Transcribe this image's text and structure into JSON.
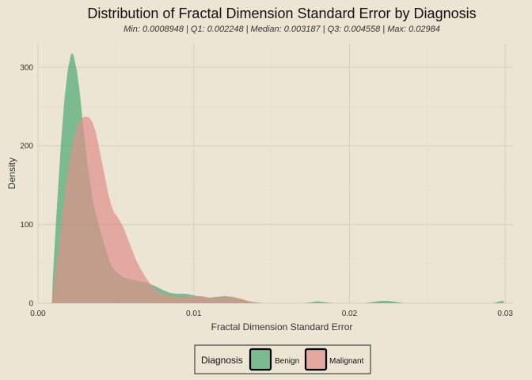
{
  "chart_data": {
    "type": "area",
    "title": "Distribution of Fractal Dimension Standard Error by Diagnosis",
    "subtitle": "Min: 0.0008948 | Q1: 0.002248 | Median: 0.003187 | Q3: 0.004558 | Max: 0.02984",
    "xlabel": "Fractal Dimension Standard Error",
    "ylabel": "Density",
    "xlim": [
      0,
      0.0305
    ],
    "ylim": [
      0,
      330
    ],
    "x_ticks": [
      0,
      0.01,
      0.02,
      0.03
    ],
    "x_tick_labels": [
      "0.00",
      "0.01",
      "0.02",
      "0.03"
    ],
    "y_ticks": [
      0,
      100,
      200,
      300
    ],
    "y_tick_labels": [
      "0",
      "100",
      "200",
      "300"
    ],
    "grid": true,
    "legend_position": "bottom",
    "legend_title": "Diagnosis",
    "series": [
      {
        "name": "Benign",
        "color": "#3fa56a",
        "opacity": 0.65,
        "points": [
          [
            0.00089,
            0
          ],
          [
            0.00095,
            30
          ],
          [
            0.0011,
            85
          ],
          [
            0.0013,
            150
          ],
          [
            0.0015,
            210
          ],
          [
            0.0017,
            260
          ],
          [
            0.0019,
            295
          ],
          [
            0.0021,
            315
          ],
          [
            0.0022,
            318
          ],
          [
            0.0023,
            314
          ],
          [
            0.0025,
            295
          ],
          [
            0.0027,
            265
          ],
          [
            0.0029,
            225
          ],
          [
            0.0031,
            190
          ],
          [
            0.0033,
            160
          ],
          [
            0.0035,
            132
          ],
          [
            0.0037,
            115
          ],
          [
            0.0039,
            100
          ],
          [
            0.0041,
            85
          ],
          [
            0.0043,
            72
          ],
          [
            0.0045,
            58
          ],
          [
            0.0047,
            48
          ],
          [
            0.005,
            40
          ],
          [
            0.0055,
            33
          ],
          [
            0.006,
            30
          ],
          [
            0.0065,
            28
          ],
          [
            0.007,
            26
          ],
          [
            0.0075,
            22
          ],
          [
            0.008,
            17
          ],
          [
            0.0085,
            13
          ],
          [
            0.009,
            12
          ],
          [
            0.0095,
            12
          ],
          [
            0.01,
            10
          ],
          [
            0.0105,
            8
          ],
          [
            0.011,
            7
          ],
          [
            0.0115,
            8
          ],
          [
            0.012,
            9
          ],
          [
            0.0125,
            8
          ],
          [
            0.013,
            5
          ],
          [
            0.0135,
            2
          ],
          [
            0.014,
            1
          ],
          [
            0.0145,
            0
          ],
          [
            0.017,
            0
          ],
          [
            0.0175,
            1
          ],
          [
            0.018,
            2.5
          ],
          [
            0.0185,
            1
          ],
          [
            0.019,
            0
          ],
          [
            0.021,
            0
          ],
          [
            0.0215,
            1.5
          ],
          [
            0.022,
            3
          ],
          [
            0.0225,
            3
          ],
          [
            0.023,
            1.5
          ],
          [
            0.0235,
            0
          ],
          [
            0.0292,
            0
          ],
          [
            0.0296,
            2
          ],
          [
            0.0298,
            3
          ],
          [
            0.0299,
            3
          ],
          [
            0.0299,
            0
          ]
        ]
      },
      {
        "name": "Malignant",
        "color": "#e0908a",
        "opacity": 0.7,
        "points": [
          [
            0.00089,
            0
          ],
          [
            0.00095,
            12
          ],
          [
            0.0011,
            35
          ],
          [
            0.0013,
            65
          ],
          [
            0.0015,
            100
          ],
          [
            0.0017,
            135
          ],
          [
            0.0019,
            165
          ],
          [
            0.0021,
            190
          ],
          [
            0.0023,
            210
          ],
          [
            0.0025,
            225
          ],
          [
            0.0027,
            232
          ],
          [
            0.0029,
            236
          ],
          [
            0.0031,
            237
          ],
          [
            0.0033,
            236
          ],
          [
            0.0035,
            230
          ],
          [
            0.0037,
            218
          ],
          [
            0.0039,
            200
          ],
          [
            0.0041,
            180
          ],
          [
            0.0043,
            160
          ],
          [
            0.0045,
            140
          ],
          [
            0.0047,
            125
          ],
          [
            0.0049,
            115
          ],
          [
            0.0051,
            110
          ],
          [
            0.0053,
            103
          ],
          [
            0.0055,
            96
          ],
          [
            0.0057,
            85
          ],
          [
            0.006,
            70
          ],
          [
            0.0063,
            55
          ],
          [
            0.0066,
            43
          ],
          [
            0.007,
            30
          ],
          [
            0.0074,
            20
          ],
          [
            0.0078,
            14
          ],
          [
            0.0082,
            11
          ],
          [
            0.0086,
            9
          ],
          [
            0.009,
            8
          ],
          [
            0.0095,
            8
          ],
          [
            0.01,
            9
          ],
          [
            0.0105,
            9
          ],
          [
            0.011,
            7
          ],
          [
            0.0115,
            7
          ],
          [
            0.012,
            8
          ],
          [
            0.0125,
            8
          ],
          [
            0.013,
            6
          ],
          [
            0.0135,
            3
          ],
          [
            0.014,
            1
          ],
          [
            0.0145,
            0
          ]
        ]
      }
    ]
  }
}
